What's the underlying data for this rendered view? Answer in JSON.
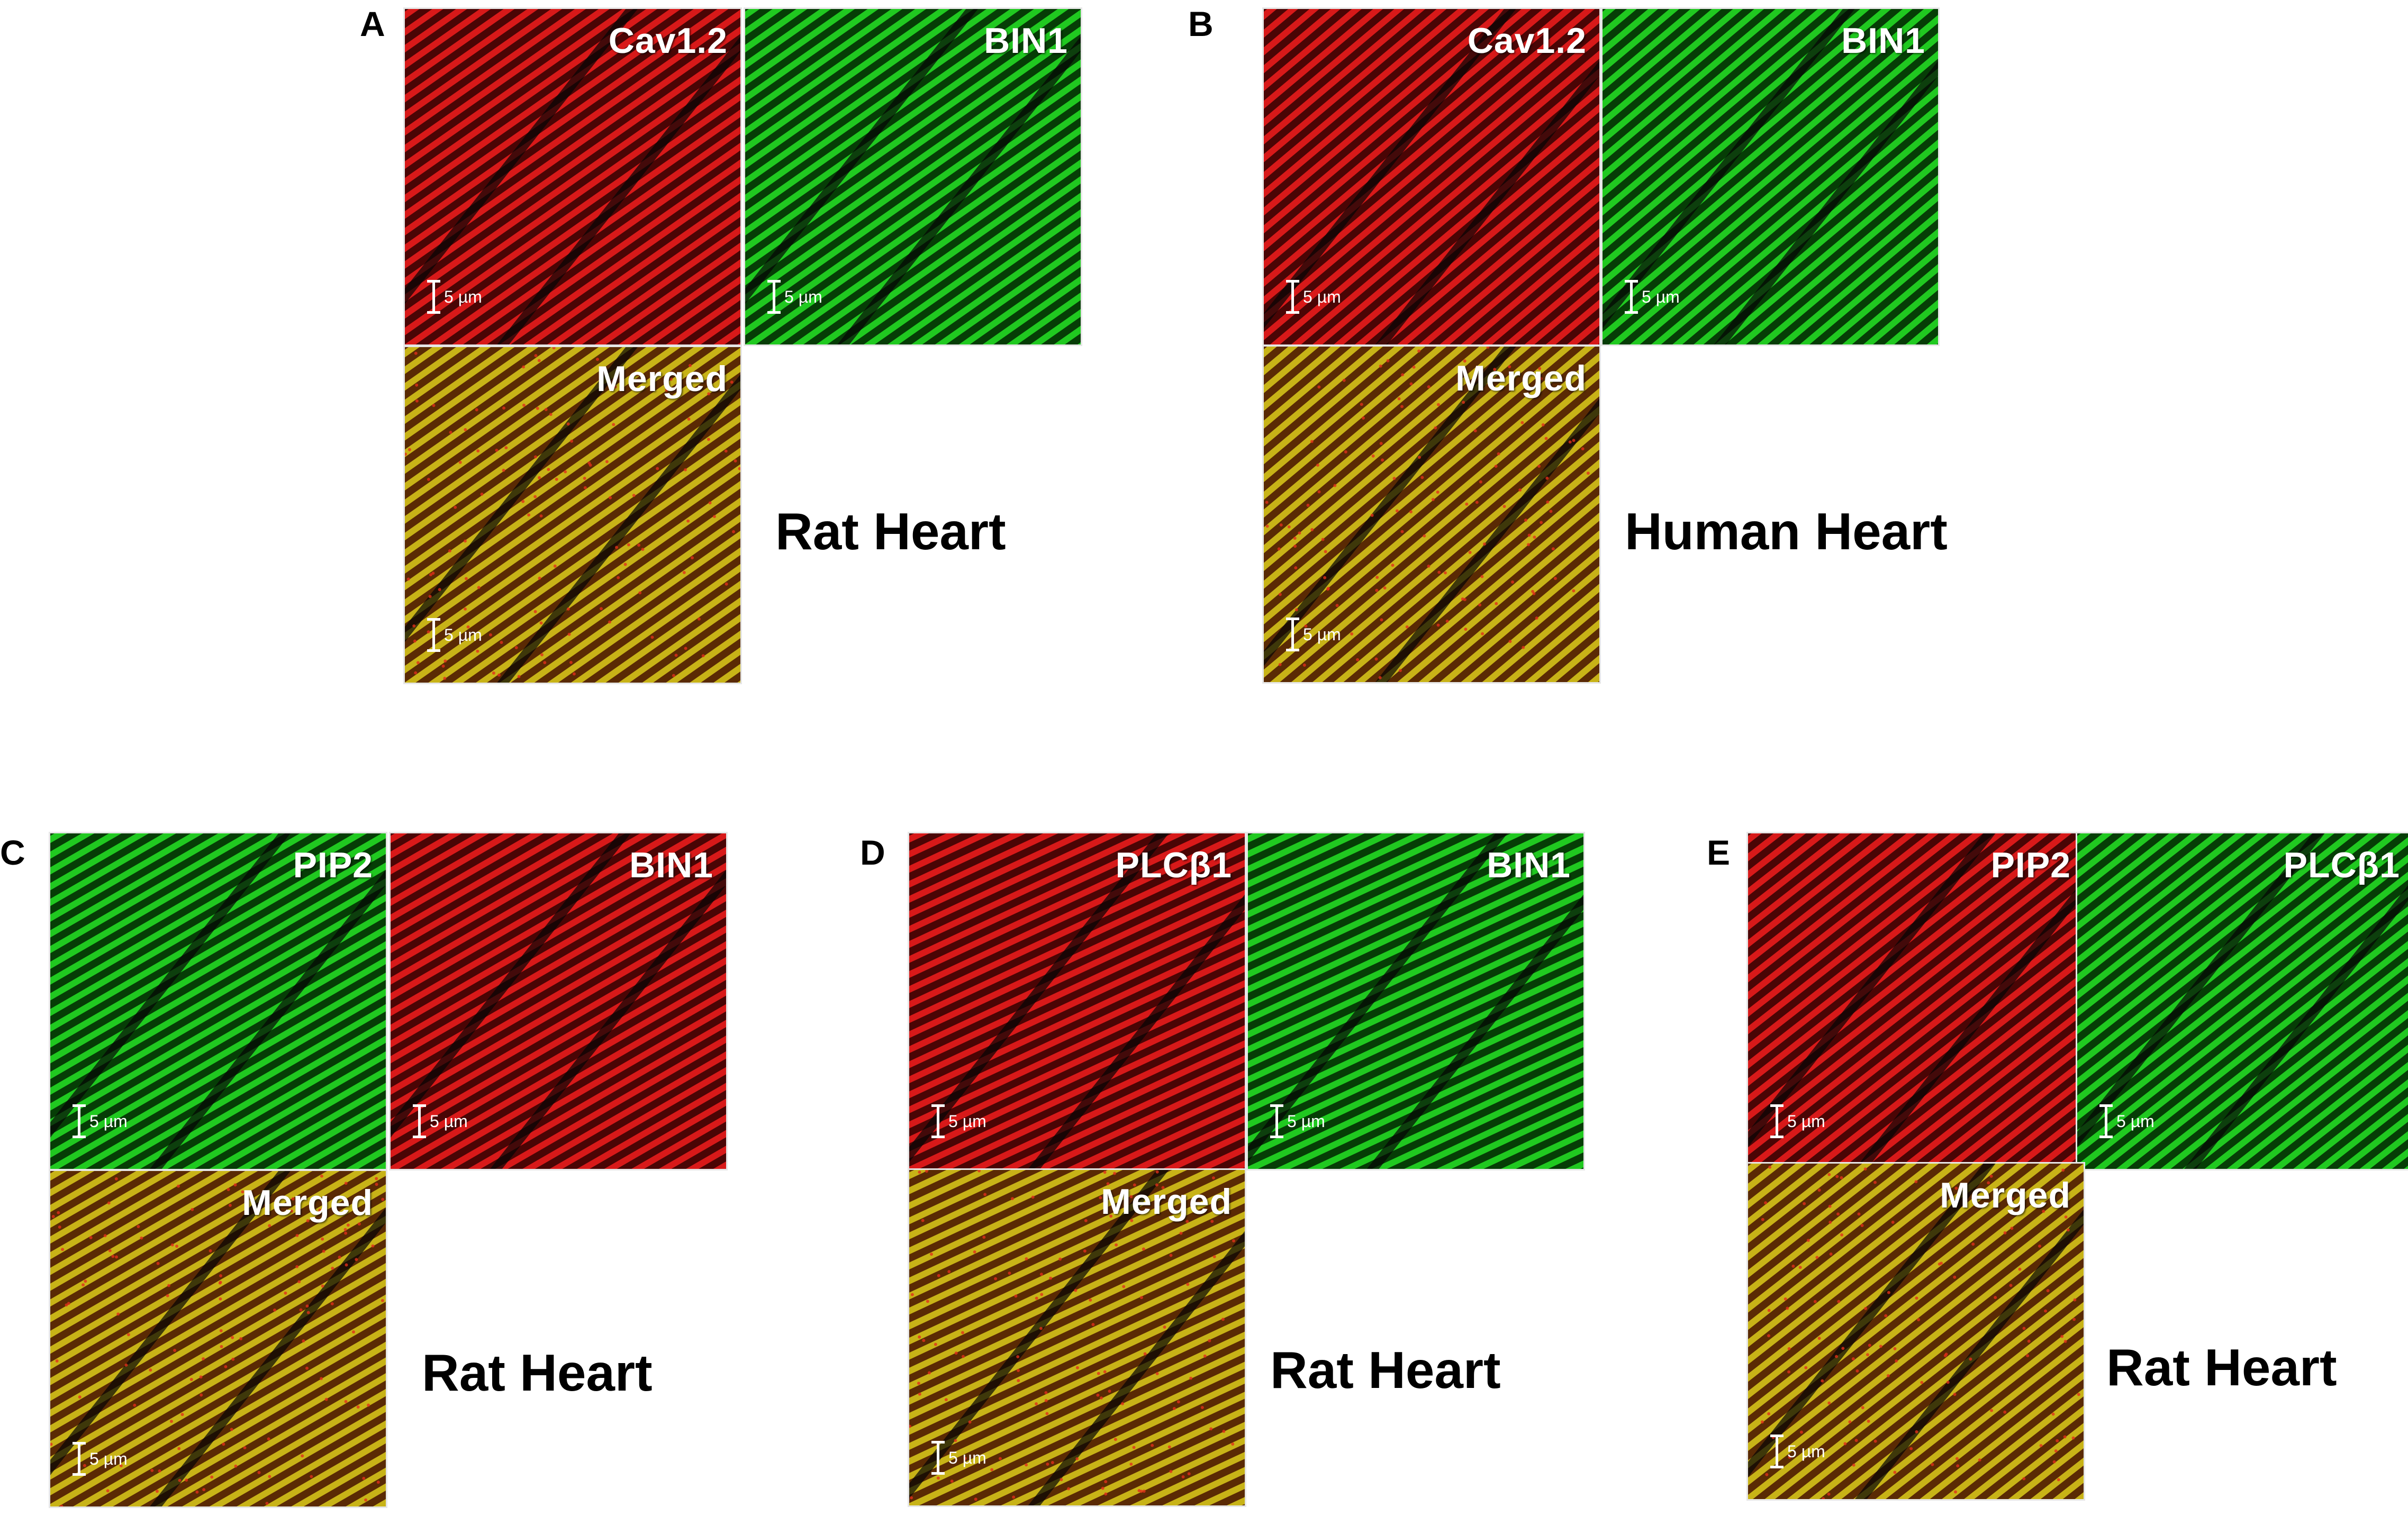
{
  "panels": [
    {
      "letter": "A",
      "species": "Rat Heart",
      "images": [
        {
          "label": "Cav1.2",
          "scale": "5 µm",
          "channel": "red",
          "stripe_angle": -35
        },
        {
          "label": "BIN1",
          "scale": "5 µm",
          "channel": "green",
          "stripe_angle": -35
        },
        {
          "label": "Merged",
          "scale": "5 µm",
          "channel": "merged",
          "stripe_angle": -35
        }
      ]
    },
    {
      "letter": "B",
      "species": "Human Heart",
      "images": [
        {
          "label": "Cav1.2",
          "scale": "5 µm",
          "channel": "red",
          "stripe_angle": -40
        },
        {
          "label": "BIN1",
          "scale": "5 µm",
          "channel": "green",
          "stripe_angle": -40
        },
        {
          "label": "Merged",
          "scale": "5 µm",
          "channel": "merged",
          "stripe_angle": -40
        }
      ]
    },
    {
      "letter": "C",
      "species": "Rat Heart",
      "images": [
        {
          "label": "PIP2",
          "scale": "5 µm",
          "channel": "green",
          "stripe_angle": -30
        },
        {
          "label": "BIN1",
          "scale": "5 µm",
          "channel": "red",
          "stripe_angle": -30
        },
        {
          "label": "Merged",
          "scale": "5 µm",
          "channel": "merged",
          "stripe_angle": -30
        }
      ]
    },
    {
      "letter": "D",
      "species": "Rat Heart",
      "images": [
        {
          "label": "PLCβ1",
          "scale": "5 µm",
          "channel": "red",
          "stripe_angle": -25
        },
        {
          "label": "BIN1",
          "scale": "5 µm",
          "channel": "green",
          "stripe_angle": -25
        },
        {
          "label": "Merged",
          "scale": "5 µm",
          "channel": "merged",
          "stripe_angle": -25
        }
      ]
    },
    {
      "letter": "E",
      "species": "Rat Heart",
      "images": [
        {
          "label": "PIP2",
          "scale": "5 µm",
          "channel": "red",
          "stripe_angle": -38
        },
        {
          "label": "PLCβ1",
          "scale": "5 µm",
          "channel": "green",
          "stripe_angle": -38
        },
        {
          "label": "Merged",
          "scale": "5 µm",
          "channel": "merged",
          "stripe_angle": -38
        }
      ]
    }
  ],
  "colors": {
    "red_bg": "#4a0505",
    "red_stripe": "#e81c1c",
    "green_bg": "#063d06",
    "green_stripe": "#22d922",
    "merged_bg": "#5a2a04",
    "merged_stripe": "#d4c21a",
    "merged_speck": "#e0301a"
  }
}
